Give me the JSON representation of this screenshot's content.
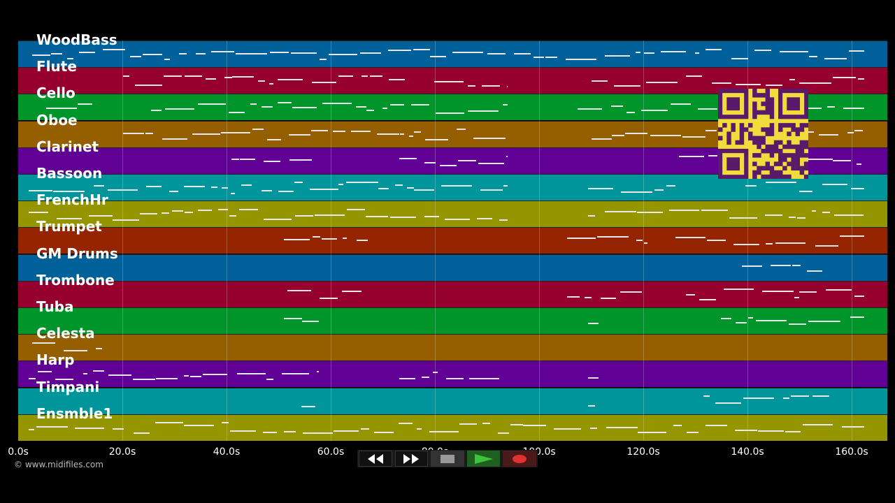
{
  "tracks": [
    {
      "name": "WoodBass",
      "color": "#00609a"
    },
    {
      "name": "Flute",
      "color": "#95002e"
    },
    {
      "name": "Cello",
      "color": "#00952a"
    },
    {
      "name": "Oboe",
      "color": "#955f00"
    },
    {
      "name": "Clarinet",
      "color": "#600095"
    },
    {
      "name": "Bassoon",
      "color": "#00959a"
    },
    {
      "name": "FrenchHr",
      "color": "#959500"
    },
    {
      "name": "Trumpet",
      "color": "#952500"
    },
    {
      "name": "GM Drums",
      "color": "#00609a"
    },
    {
      "name": "Trombone",
      "color": "#95002e"
    },
    {
      "name": "Tuba",
      "color": "#00952a"
    },
    {
      "name": "Celesta",
      "color": "#955f00"
    },
    {
      "name": "Harp",
      "color": "#600095"
    },
    {
      "name": "Timpani",
      "color": "#00959a"
    },
    {
      "name": "Ensmble1",
      "color": "#959500"
    }
  ],
  "time_axis": {
    "ticks": [
      "0.0s",
      "20.0s",
      "40.0s",
      "60.0s",
      "80.0s",
      "100.0s",
      "120.0s",
      "140.0s",
      "160.0s"
    ]
  },
  "copyright": "© www.midifiles.com",
  "transport": {
    "rewind_icon": "double-left-arrow",
    "ffwd_icon": "double-right-arrow",
    "stop_icon": "square",
    "play_icon": "triangle-right",
    "record_icon": "circle",
    "play_color": "#3cc43c",
    "record_color": "#e03030"
  },
  "qr_color": "#f0dc3c"
}
